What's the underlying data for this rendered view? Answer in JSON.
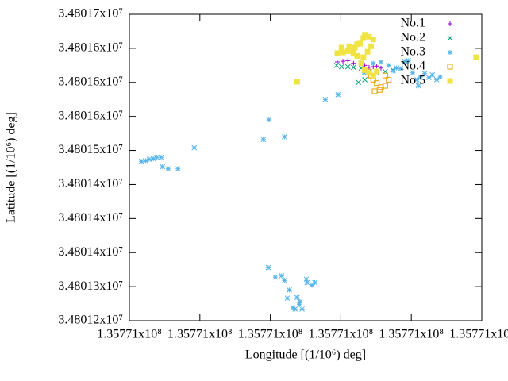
{
  "chart_data": {
    "type": "scatter",
    "x_label": "Longitude [(1/10⁶) deg]",
    "y_label": "Latitude [(1/10⁶) deg]",
    "xlim": [
      135770800,
      135771300
    ],
    "ylim": [
      34801250,
      34801700
    ],
    "xticks": [
      {
        "value": 135770800,
        "label": "1.35771x10⁸"
      },
      {
        "value": 135770900,
        "label": "1.35771x10⁸"
      },
      {
        "value": 135771000,
        "label": "1.35771x10⁸"
      },
      {
        "value": 135771100,
        "label": "1.35771x10⁸"
      },
      {
        "value": 135771200,
        "label": "1.35771x10⁸"
      },
      {
        "value": 135771300,
        "label": "1.35771x10⁸"
      }
    ],
    "yticks": [
      {
        "value": 34801700,
        "label": "3.48017x10⁷"
      },
      {
        "value": 34801650,
        "label": "3.48016x10⁷"
      },
      {
        "value": 34801600,
        "label": "3.48016x10⁷"
      },
      {
        "value": 34801550,
        "label": "3.48016x10⁷"
      },
      {
        "value": 34801500,
        "label": "3.48015x10⁷"
      },
      {
        "value": 34801450,
        "label": "3.48014x10⁷"
      },
      {
        "value": 34801400,
        "label": "3.48014x10⁷"
      },
      {
        "value": 34801350,
        "label": "3.48014x10⁷"
      },
      {
        "value": 34801300,
        "label": "3.48013x10⁷"
      },
      {
        "value": 34801250,
        "label": "3.48012x10⁷"
      }
    ],
    "legend": "top-right",
    "series": [
      {
        "name": "No.1",
        "color": "#9400d3",
        "marker": "plus",
        "x": [
          135771095,
          135771103,
          135771110,
          135771118,
          135771134,
          135771146,
          135771157,
          135771151,
          135771140
        ],
        "values": [
          34801630,
          34801631,
          34801632,
          34801628,
          34801625,
          34801623,
          34801621,
          34801624,
          34801622
        ]
      },
      {
        "name": "No.2",
        "color": "#009e73",
        "marker": "cross",
        "x": [
          135771094,
          135771101,
          135771110,
          135771118,
          135771129,
          135771140,
          135771151,
          135771163,
          135771174,
          135771125,
          135771134
        ],
        "values": [
          34801625,
          34801623,
          34801623,
          34801622,
          34801621,
          34801616,
          34801614,
          34801616,
          34801618,
          34801600,
          34801604
        ]
      },
      {
        "name": "No.3",
        "color": "#56b4e9",
        "marker": "star",
        "x": [
          135770817,
          135770823,
          135770828,
          135770834,
          135770839,
          135770845,
          135770847,
          135770855,
          135770869,
          135770892,
          135770990,
          135770998,
          135771020,
          135771078,
          135771096,
          135770997,
          135771007,
          135771016,
          135771020,
          135771027,
          135771024,
          135771032,
          135771038,
          135771041,
          135771045,
          135771042,
          135771051,
          135771052,
          135771059,
          135771063,
          135771035,
          135771133,
          135771146,
          135771157,
          135771168,
          135771179,
          135771191,
          135771196,
          135771202,
          135771213,
          135771225,
          135771236,
          135771241,
          135771230,
          135771219,
          135771208,
          135771210,
          135771185,
          135771174
        ],
        "values": [
          34801484,
          34801485,
          34801487,
          34801488,
          34801490,
          34801490,
          34801476,
          34801473,
          34801473,
          34801504,
          34801516,
          34801545,
          34801520,
          34801575,
          34801582,
          34801328,
          34801314,
          34801316,
          34801309,
          34801295,
          34801283,
          34801269,
          34801284,
          34801274,
          34801267,
          34801278,
          34801311,
          34801306,
          34801302,
          34801306,
          34801267,
          34801614,
          34801628,
          34801630,
          34801625,
          34801621,
          34801631,
          34801632,
          34801614,
          34801608,
          34801607,
          34801604,
          34801608,
          34801611,
          34801613,
          34801604,
          34801595,
          34801620,
          34801617
        ]
      },
      {
        "name": "No.4",
        "color": "#e69f00",
        "marker": "square-open",
        "x": [
          135771140,
          135771146,
          135771151,
          135771157,
          135771148,
          135771155,
          135771163,
          135771168,
          135771163,
          135771143
        ],
        "values": [
          34801616,
          34801604,
          34801599,
          34801593,
          34801587,
          34801589,
          34801595,
          34801604,
          34801610,
          34801610
        ]
      },
      {
        "name": "No.5",
        "color": "#f0e442",
        "marker": "square-filled",
        "x": [
          135771038,
          135771292,
          135771095,
          135771103,
          135771112,
          135771120,
          135771127,
          135771132,
          135771134,
          135771140,
          135771146,
          135771143,
          135771138,
          135771132,
          135771129,
          135771134,
          135771140,
          135771146,
          135771151,
          135771123,
          135771118,
          135771110,
          135771101,
          135771112,
          135771123
        ],
        "values": [
          34801601,
          34801637,
          34801643,
          34801644,
          34801646,
          34801651,
          34801657,
          34801665,
          34801670,
          34801667,
          34801663,
          34801653,
          34801645,
          34801637,
          34801628,
          34801618,
          34801614,
          34801610,
          34801616,
          34801639,
          34801643,
          34801646,
          34801651,
          34801653,
          34801656
        ]
      }
    ]
  }
}
